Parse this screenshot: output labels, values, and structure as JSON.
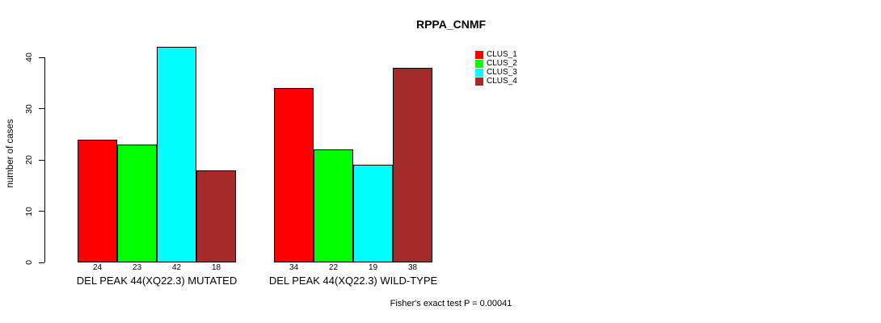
{
  "title": "RPPA_CNMF",
  "annotation": "Fisher's exact test P = 0.00041",
  "chart_data": {
    "type": "bar",
    "title": "RPPA_CNMF",
    "xlabel": "",
    "ylabel": "number of cases",
    "categories": [
      "DEL PEAK 44(XQ22.3) MUTATED",
      "DEL PEAK 44(XQ22.3) WILD-TYPE"
    ],
    "series": [
      {
        "name": "CLUS_1",
        "color": "#ff0000",
        "values": [
          24,
          34
        ]
      },
      {
        "name": "CLUS_2",
        "color": "#00ff00",
        "values": [
          23,
          22
        ]
      },
      {
        "name": "CLUS_3",
        "color": "#00ffff",
        "values": [
          42,
          19
        ]
      },
      {
        "name": "CLUS_4",
        "color": "#a52a2a",
        "values": [
          18,
          38
        ]
      }
    ],
    "yticks": [
      0,
      10,
      20,
      30,
      40
    ],
    "ylim": [
      0,
      42
    ],
    "grid": false,
    "bar_value_labels_shown": true,
    "legend_position": "top-right",
    "legend_entries": [
      "CLUS_1",
      "CLUS_2",
      "CLUS_3",
      "CLUS_4"
    ]
  }
}
